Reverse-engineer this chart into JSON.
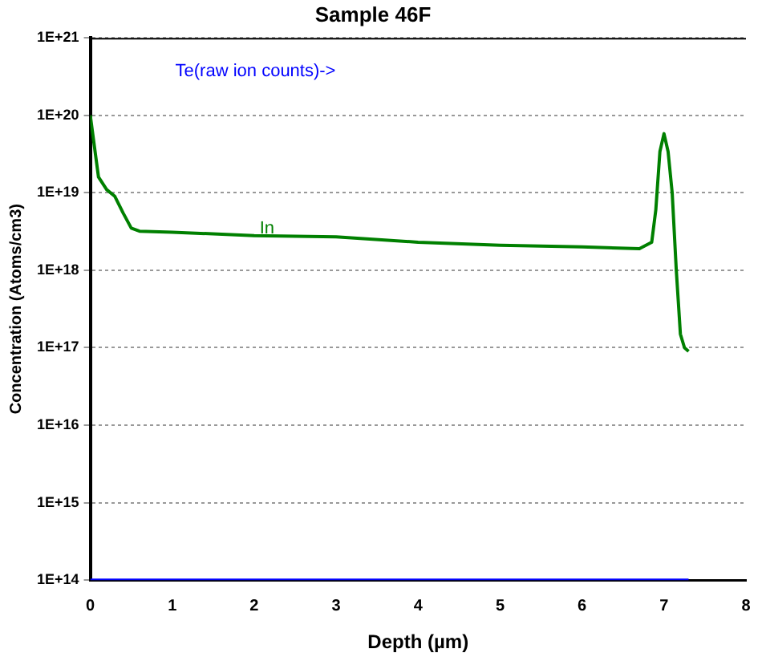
{
  "chart_data": {
    "type": "line",
    "title": "Sample 46F",
    "xlabel": "Depth (µm)",
    "ylabel": "Concentration (Atoms/cm3)",
    "log": "y",
    "grid": "y",
    "legend": false,
    "marker": "none",
    "line_style": "solid",
    "xlim": [
      0,
      8
    ],
    "xticks": [
      0,
      1,
      2,
      3,
      4,
      5,
      6,
      7,
      8
    ],
    "ylim": [
      100000000000000.0,
      1e+21
    ],
    "yticks": [
      {
        "value": 100000000000000.0,
        "label": "1E+14"
      },
      {
        "value": 1000000000000000.0,
        "label": "1E+15"
      },
      {
        "value": 1e+16,
        "label": "1E+16"
      },
      {
        "value": 1e+17,
        "label": "1E+17"
      },
      {
        "value": 1e+18,
        "label": "1E+18"
      },
      {
        "value": 1e+19,
        "label": "1E+19"
      },
      {
        "value": 1e+20,
        "label": "1E+20"
      },
      {
        "value": 1e+21,
        "label": "1E+21"
      }
    ],
    "annotations": [
      "Te(raw ion counts)->"
    ],
    "series": [
      {
        "name": "In",
        "color": "#008000",
        "x": [
          0,
          0.05,
          0.1,
          0.2,
          0.3,
          0.4,
          0.5,
          0.6,
          1,
          2,
          3,
          4,
          5,
          6,
          6.7,
          6.85,
          6.9,
          6.95,
          7,
          7.05,
          7.1,
          7.15,
          7.2,
          7.25,
          7.3
        ],
        "values": [
          1e+20,
          4e+19,
          1.6e+19,
          1.1e+19,
          9e+18,
          5.5e+18,
          3.5e+18,
          3.2e+18,
          3.1e+18,
          2.8e+18,
          2.7e+18,
          2.3e+18,
          2.1e+18,
          2e+18,
          1.9e+18,
          2.3e+18,
          6e+18,
          3.4e+19,
          5.8e+19,
          3.4e+19,
          1e+19,
          1e+18,
          1.5e+17,
          1e+17,
          9e+16
        ]
      },
      {
        "color": "#0000ff",
        "x": [
          0,
          7.3
        ],
        "values": [
          100000000000000.0,
          100000000000000.0
        ]
      }
    ]
  }
}
